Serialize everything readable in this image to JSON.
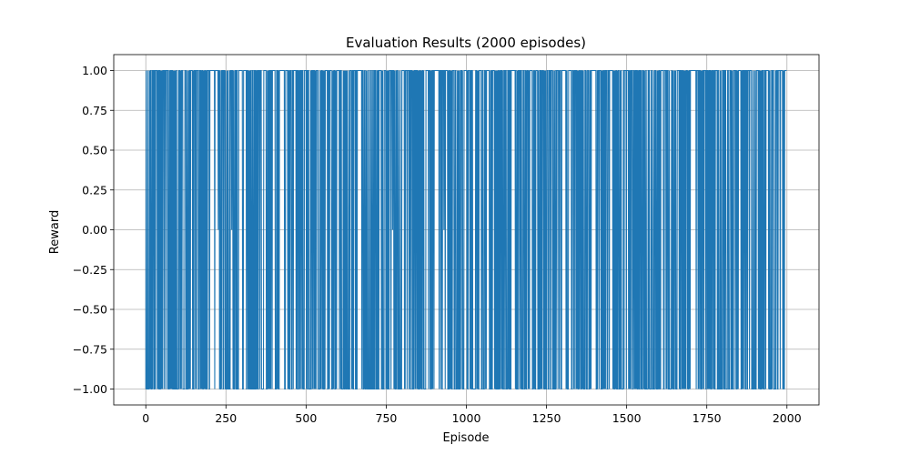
{
  "chart_data": {
    "type": "line",
    "title": "Evaluation Results (2000 episodes)",
    "xlabel": "Episode",
    "ylabel": "Reward",
    "xlim": [
      -100,
      2100
    ],
    "ylim": [
      -1.1,
      1.1
    ],
    "x_ticks": [
      0,
      250,
      500,
      750,
      1000,
      1250,
      1500,
      1750,
      2000
    ],
    "x_tick_labels": [
      "0",
      "250",
      "500",
      "750",
      "1000",
      "1250",
      "1500",
      "1750",
      "2000"
    ],
    "y_ticks": [
      -1.0,
      -0.75,
      -0.5,
      -0.25,
      0.0,
      0.25,
      0.5,
      0.75,
      1.0
    ],
    "y_tick_labels": [
      "−1.00",
      "−0.75",
      "−0.50",
      "−0.25",
      "0.00",
      "0.25",
      "0.50",
      "0.75",
      "1.00"
    ],
    "grid": true,
    "series": [
      {
        "color": "#1f77b4",
        "episodes": 2000,
        "values_set": [
          -1,
          0,
          1
        ],
        "draw_episodes": [
          226,
          268,
          770,
          930,
          1520,
          1650
        ],
        "win_runs": [
          [
            200,
            214
          ],
          [
            420,
            432
          ],
          [
            660,
            672
          ],
          [
            900,
            914
          ],
          [
            1140,
            1152
          ],
          [
            1390,
            1404
          ],
          [
            1700,
            1716
          ]
        ],
        "nonloss_gaps": [
          [
            216,
            226
          ],
          [
            264,
            270
          ],
          [
            290,
            300
          ],
          [
            368,
            375
          ],
          [
            395,
            402
          ],
          [
            596,
            602
          ],
          [
            766,
            772
          ],
          [
            926,
            932
          ],
          [
            1040,
            1046
          ],
          [
            1063,
            1070
          ],
          [
            1300,
            1305
          ],
          [
            1320,
            1325
          ],
          [
            1500,
            1504
          ],
          [
            1618,
            1622
          ],
          [
            1850,
            1855
          ],
          [
            1936,
            1941
          ],
          [
            1980,
            1985
          ]
        ]
      }
    ]
  }
}
